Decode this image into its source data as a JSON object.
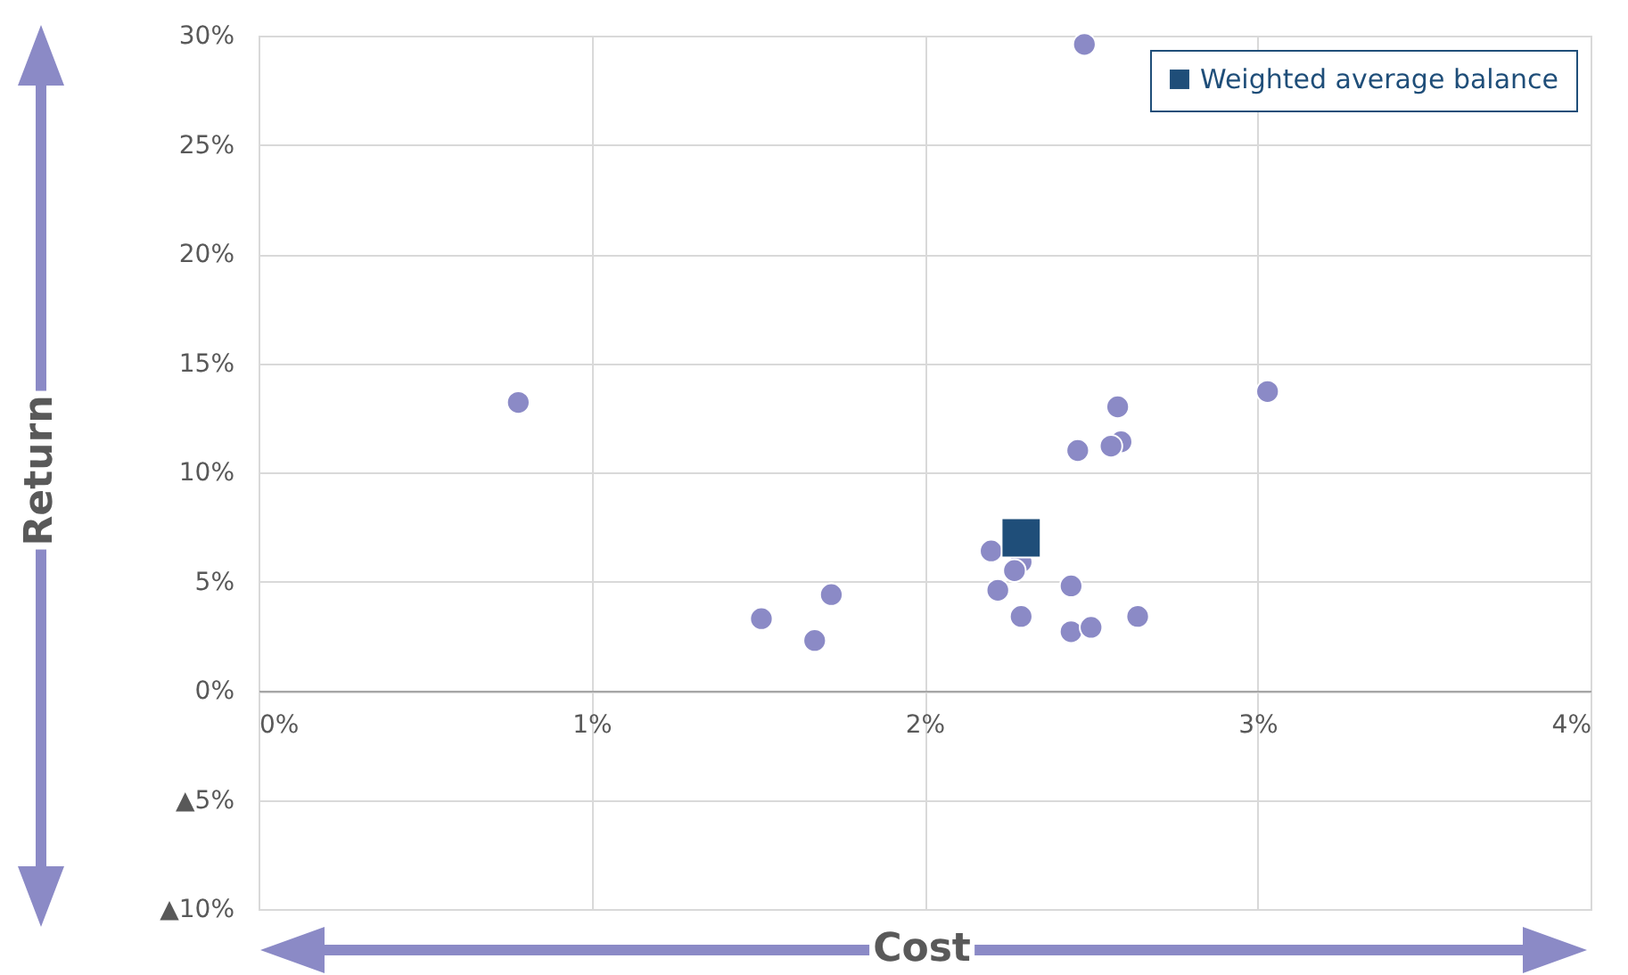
{
  "chart_data": {
    "type": "scatter",
    "xlabel": "Cost",
    "ylabel": "Return",
    "series": [
      {
        "color": "#8b8ac6",
        "marker": "circle",
        "x": [
          0.78,
          2.48,
          3.03,
          2.58,
          2.46,
          2.59,
          2.56,
          2.2,
          2.29,
          2.27,
          2.22,
          2.44,
          2.29,
          2.44,
          2.5,
          2.64,
          1.51,
          1.72,
          1.67
        ],
        "values": [
          13.2,
          29.6,
          13.7,
          13.0,
          11.0,
          11.4,
          11.2,
          6.4,
          5.9,
          5.5,
          4.6,
          4.8,
          3.4,
          2.7,
          2.9,
          3.4,
          3.3,
          4.4,
          2.3
        ]
      },
      {
        "name": "Weighted average balance",
        "color": "#1f4e79",
        "marker": "square",
        "x": [
          2.29
        ],
        "values": [
          7.0
        ]
      }
    ],
    "xlim": [
      0,
      4
    ],
    "xticks": [
      {
        "value": 0,
        "label": "0%"
      },
      {
        "value": 1,
        "label": "1%"
      },
      {
        "value": 2,
        "label": "2%"
      },
      {
        "value": 3,
        "label": "3%"
      },
      {
        "value": 4,
        "label": "4%"
      }
    ],
    "ylim": [
      -10,
      30
    ],
    "yticks": [
      {
        "value": -10,
        "label": "▲10%"
      },
      {
        "value": -5,
        "label": "▲5%"
      },
      {
        "value": 0,
        "label": "0%"
      },
      {
        "value": 5,
        "label": "5%"
      },
      {
        "value": 10,
        "label": "10%"
      },
      {
        "value": 15,
        "label": "15%"
      },
      {
        "value": 20,
        "label": "20%"
      },
      {
        "value": 25,
        "label": "25%"
      },
      {
        "value": 30,
        "label": "30%"
      }
    ],
    "grid": true,
    "legend": "top right"
  }
}
